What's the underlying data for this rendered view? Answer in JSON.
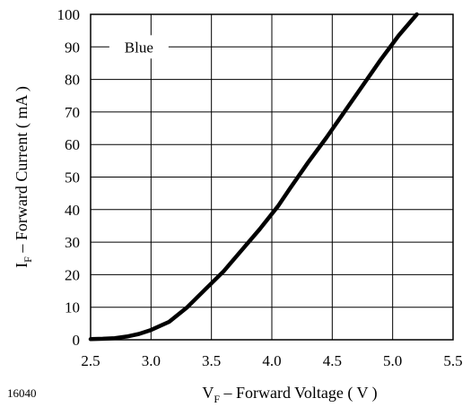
{
  "figure_number": "16040",
  "chart_data": {
    "type": "line",
    "title": "",
    "xlabel": {
      "symbol": "V",
      "subscript": "F",
      "text": " – Forward Voltage ( V )"
    },
    "ylabel": {
      "symbol": "I",
      "subscript": "F",
      "text": " – Forward Current ( mA )"
    },
    "xlim": [
      2.5,
      5.5
    ],
    "ylim": [
      0,
      100
    ],
    "xticks": [
      "2.5",
      "3.0",
      "3.5",
      "4.0",
      "4.5",
      "5.0",
      "5.5"
    ],
    "yticks": [
      "0",
      "10",
      "20",
      "30",
      "40",
      "50",
      "60",
      "70",
      "80",
      "90",
      "100"
    ],
    "grid": true,
    "annotation": "Blue",
    "series": [
      {
        "name": "Blue",
        "color": "#000000",
        "x": [
          2.5,
          2.6,
          2.7,
          2.8,
          2.9,
          3.0,
          3.15,
          3.3,
          3.45,
          3.6,
          3.75,
          3.9,
          4.05,
          4.15,
          4.3,
          4.45,
          4.6,
          4.75,
          4.9,
          5.05,
          5.2
        ],
        "y": [
          0.2,
          0.3,
          0.5,
          1.0,
          1.8,
          3.0,
          5.5,
          10.0,
          15.5,
          21.0,
          27.5,
          34.0,
          41.0,
          46.5,
          54.5,
          62.0,
          70.0,
          78.0,
          86.0,
          93.5,
          100.0
        ]
      }
    ]
  }
}
